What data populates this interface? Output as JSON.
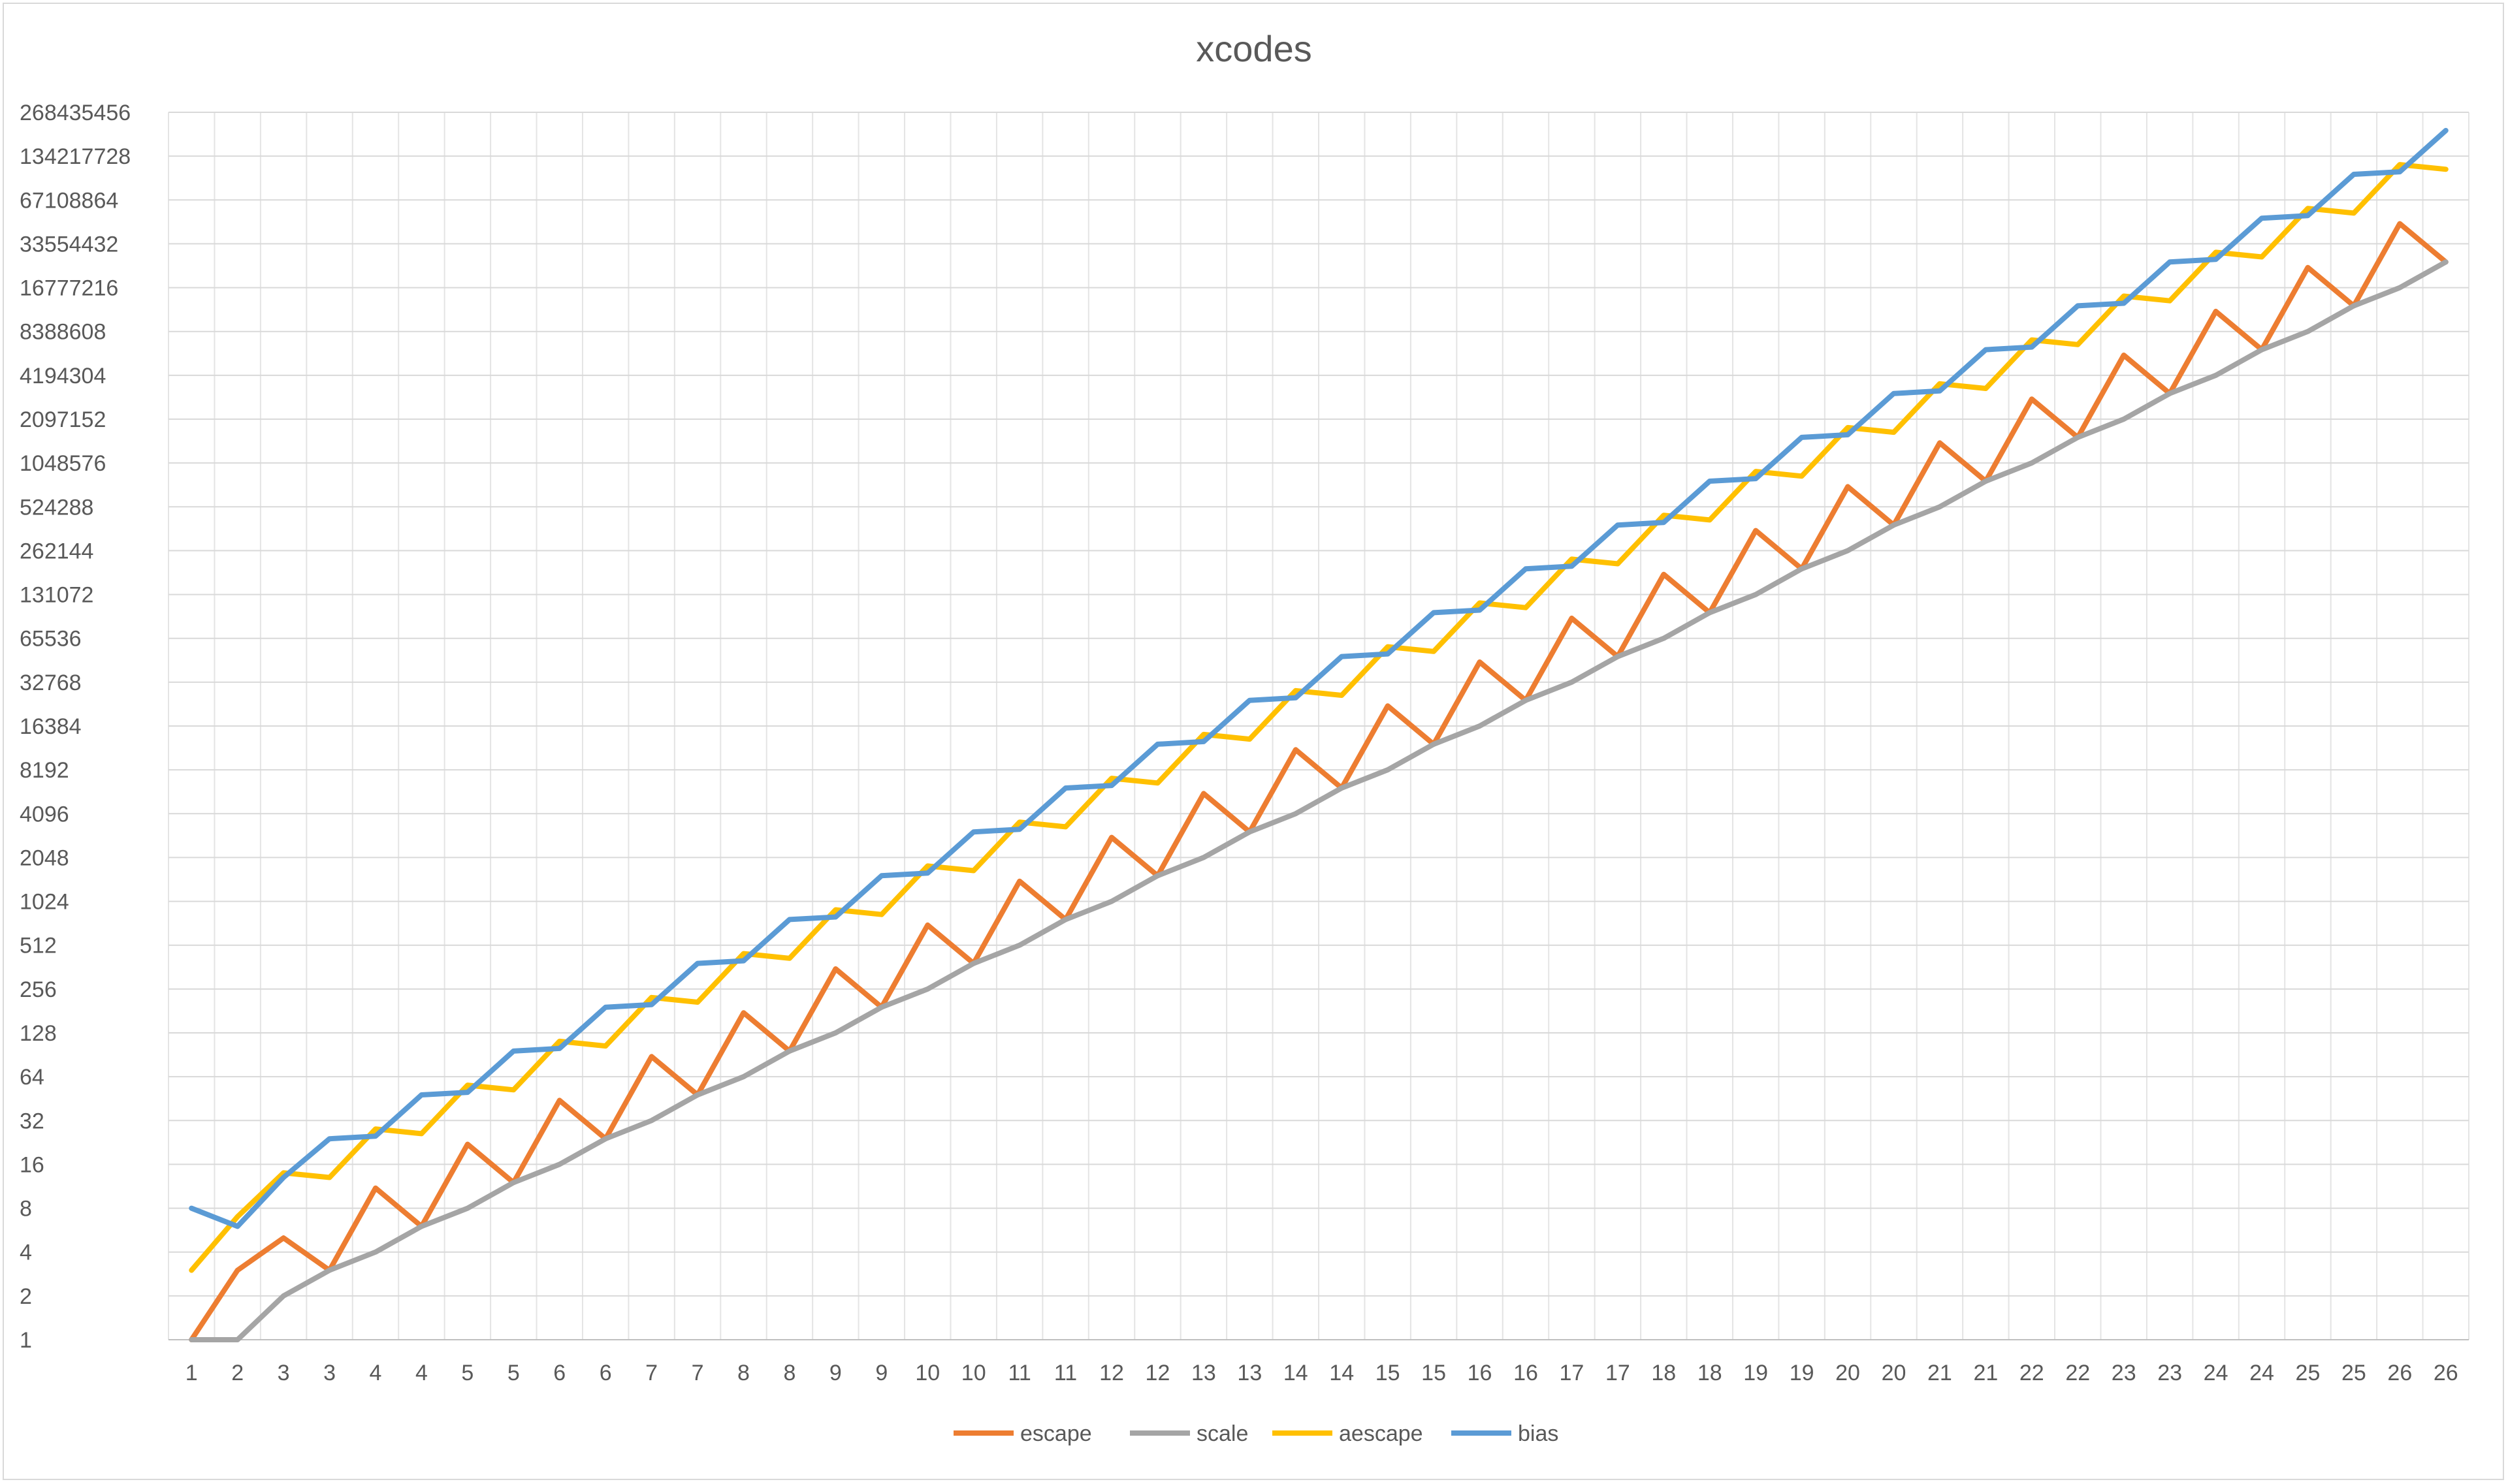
{
  "chart_data": {
    "type": "line",
    "title": "xcodes",
    "xlabel": "",
    "ylabel": "",
    "y_scale": "log2",
    "ylim": [
      1,
      268435456
    ],
    "y_ticks": [
      "1",
      "2",
      "4",
      "8",
      "16",
      "32",
      "64",
      "128",
      "256",
      "512",
      "1024",
      "2048",
      "4096",
      "8192",
      "16384",
      "32768",
      "65536",
      "131072",
      "262144",
      "524288",
      "1048576",
      "2097152",
      "4194304",
      "8388608",
      "16777216",
      "33554432",
      "67108864",
      "134217728",
      "268435456"
    ],
    "categories": [
      "1",
      "2",
      "3",
      "3",
      "4",
      "4",
      "5",
      "5",
      "6",
      "6",
      "7",
      "7",
      "8",
      "8",
      "9",
      "9",
      "10",
      "10",
      "11",
      "11",
      "12",
      "12",
      "13",
      "13",
      "14",
      "14",
      "15",
      "15",
      "16",
      "16",
      "17",
      "17",
      "18",
      "18",
      "19",
      "19",
      "20",
      "20",
      "21",
      "21",
      "22",
      "22",
      "23",
      "23",
      "24",
      "24",
      "25",
      "25",
      "26",
      "26"
    ],
    "grid": true,
    "legend_position": "bottom",
    "series": [
      {
        "name": "escape",
        "color": "#ED7D31",
        "values": [
          1,
          3,
          5,
          3,
          11,
          6,
          22,
          12,
          44,
          24,
          88,
          48,
          176,
          96,
          352,
          192,
          704,
          384,
          1408,
          768,
          2816,
          1536,
          5632,
          3072,
          11264,
          6144,
          22528,
          12288,
          45056,
          24576,
          90112,
          49152,
          180224,
          98304,
          360448,
          196608,
          720896,
          393216,
          1441792,
          786432,
          2883584,
          1572864,
          5767168,
          3145728,
          11534336,
          6291456,
          23068672,
          12582912,
          46137344,
          25165824
        ]
      },
      {
        "name": "scale",
        "color": "#A5A5A5",
        "values": [
          1,
          1,
          2,
          3,
          4,
          6,
          8,
          12,
          16,
          24,
          32,
          48,
          64,
          96,
          128,
          192,
          256,
          384,
          512,
          768,
          1024,
          1536,
          2048,
          3072,
          4096,
          6144,
          8192,
          12288,
          16384,
          24576,
          32768,
          49152,
          65536,
          98304,
          131072,
          196608,
          262144,
          393216,
          524288,
          786432,
          1048576,
          1572864,
          2097152,
          3145728,
          4194304,
          6291456,
          8388608,
          12582912,
          16777216,
          25165824
        ]
      },
      {
        "name": "aescape",
        "color": "#FFC000",
        "values": [
          3,
          7,
          14,
          13,
          28,
          26,
          56,
          52,
          112,
          104,
          224,
          208,
          448,
          416,
          896,
          832,
          1792,
          1664,
          3584,
          3328,
          7168,
          6656,
          14336,
          13312,
          28672,
          26624,
          57344,
          53248,
          114688,
          106496,
          229376,
          212992,
          458752,
          425984,
          917504,
          851968,
          1835008,
          1703936,
          3670016,
          3407872,
          7340032,
          6815744,
          14680064,
          13631488,
          29360128,
          27262976,
          58720256,
          54525952,
          117440512,
          109051904
        ]
      },
      {
        "name": "bias",
        "color": "#5B9BD5",
        "values": [
          8,
          6,
          13,
          24,
          25,
          48,
          50,
          96,
          100,
          192,
          200,
          384,
          400,
          768,
          800,
          1536,
          1600,
          3072,
          3200,
          6144,
          6400,
          12288,
          12800,
          24576,
          25600,
          49152,
          51200,
          98304,
          102400,
          196608,
          204800,
          393216,
          409600,
          786432,
          819200,
          1572864,
          1638400,
          3145728,
          3276800,
          6291456,
          6553600,
          12582912,
          13107200,
          25165824,
          26214400,
          50331648,
          52428800,
          100663296,
          104857600,
          201326592
        ]
      }
    ]
  }
}
